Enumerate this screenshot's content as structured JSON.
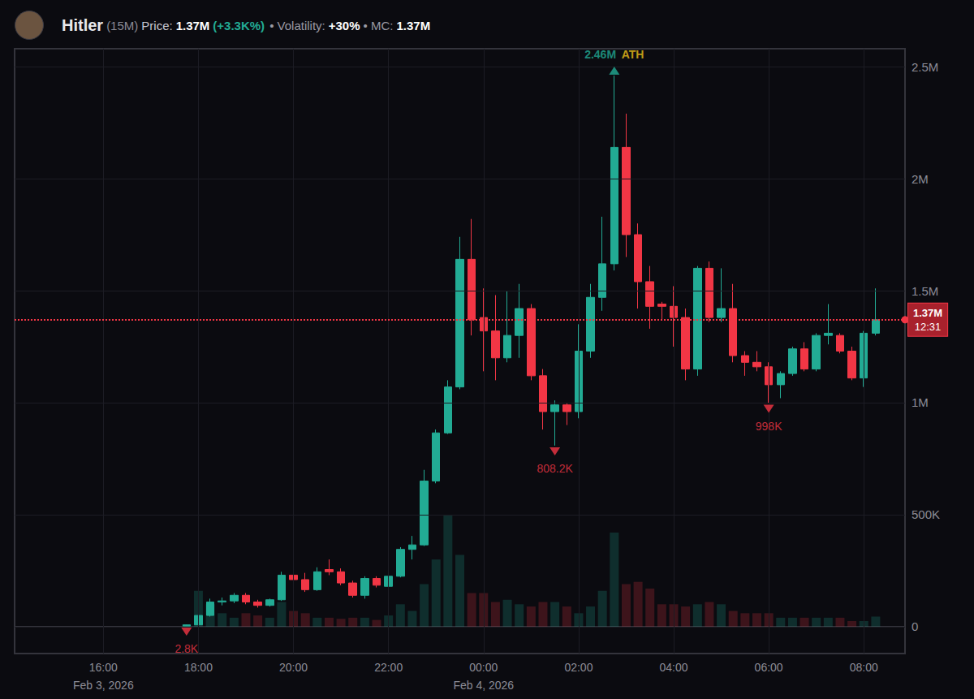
{
  "chart_data": {
    "type": "candlestick",
    "header": {
      "name": "Hitler",
      "interval": "(15M)",
      "price_label": "Price:",
      "price": "1.37M",
      "change": "(+3.3K%)",
      "volatility_label": "• Volatility:",
      "volatility": "+30%",
      "mc_label": "• MC:",
      "mc": "1.37M"
    },
    "x": [
      "2026-02-03T17:45",
      "2026-02-03T18:00",
      "2026-02-03T18:15",
      "2026-02-03T18:30",
      "2026-02-03T18:45",
      "2026-02-03T19:00",
      "2026-02-03T19:15",
      "2026-02-03T19:30",
      "2026-02-03T19:45",
      "2026-02-03T20:00",
      "2026-02-03T20:15",
      "2026-02-03T20:30",
      "2026-02-03T20:45",
      "2026-02-03T21:00",
      "2026-02-03T21:15",
      "2026-02-03T21:30",
      "2026-02-03T21:45",
      "2026-02-03T22:00",
      "2026-02-03T22:15",
      "2026-02-03T22:30",
      "2026-02-03T22:45",
      "2026-02-03T23:00",
      "2026-02-03T23:15",
      "2026-02-03T23:30",
      "2026-02-03T23:45",
      "2026-02-04T00:00",
      "2026-02-04T00:15",
      "2026-02-04T00:30",
      "2026-02-04T00:45",
      "2026-02-04T01:00",
      "2026-02-04T01:15",
      "2026-02-04T01:30",
      "2026-02-04T01:45",
      "2026-02-04T02:00",
      "2026-02-04T02:15",
      "2026-02-04T02:30",
      "2026-02-04T02:45",
      "2026-02-04T03:00",
      "2026-02-04T03:15",
      "2026-02-04T03:30",
      "2026-02-04T03:45",
      "2026-02-04T04:00",
      "2026-02-04T04:15",
      "2026-02-04T04:30",
      "2026-02-04T04:45",
      "2026-02-04T05:00",
      "2026-02-04T05:15",
      "2026-02-04T05:30",
      "2026-02-04T05:45",
      "2026-02-04T06:00",
      "2026-02-04T06:15",
      "2026-02-04T06:30",
      "2026-02-04T06:45",
      "2026-02-04T07:00",
      "2026-02-04T07:15",
      "2026-02-04T07:30",
      "2026-02-04T07:45",
      "2026-02-04T08:00",
      "2026-02-04T08:15"
    ],
    "open": [
      2800,
      8000,
      50000,
      110000,
      115000,
      140000,
      110000,
      95000,
      120000,
      230000,
      210000,
      165000,
      255000,
      245000,
      195000,
      140000,
      215000,
      180000,
      225000,
      345000,
      365000,
      650000,
      865000,
      1070000,
      1640000,
      1380000,
      1320000,
      1200000,
      1300000,
      1420000,
      1120000,
      960000,
      990000,
      960000,
      1230000,
      1470000,
      1620000,
      2140000,
      1750000,
      1540000,
      1440000,
      1430000,
      1380000,
      1150000,
      1600000,
      1380000,
      1420000,
      1210000,
      1180000,
      1160000,
      1080000,
      1130000,
      1240000,
      1150000,
      1300000,
      1300000,
      1230000,
      1110000,
      1310000
    ],
    "close": [
      8000,
      50000,
      110000,
      115000,
      140000,
      110000,
      95000,
      120000,
      230000,
      210000,
      165000,
      245000,
      245000,
      195000,
      140000,
      215000,
      185000,
      225000,
      345000,
      365000,
      650000,
      865000,
      1070000,
      1640000,
      1370000,
      1320000,
      1200000,
      1300000,
      1420000,
      1120000,
      960000,
      990000,
      960000,
      1230000,
      1470000,
      1620000,
      2140000,
      1750000,
      1540000,
      1430000,
      1430000,
      1380000,
      1150000,
      1600000,
      1380000,
      1420000,
      1210000,
      1180000,
      1160000,
      1080000,
      1130000,
      1240000,
      1150000,
      1300000,
      1310000,
      1230000,
      1110000,
      1310000,
      1370000
    ],
    "low": [
      2800,
      8000,
      45000,
      95000,
      105000,
      100000,
      85000,
      90000,
      115000,
      200000,
      155000,
      160000,
      230000,
      185000,
      130000,
      125000,
      175000,
      170000,
      220000,
      300000,
      360000,
      640000,
      860000,
      1060000,
      1300000,
      1140000,
      1100000,
      1180000,
      1200000,
      1100000,
      880000,
      808200,
      900000,
      930000,
      1200000,
      1410000,
      1590000,
      1650000,
      1420000,
      1330000,
      1370000,
      1250000,
      1100000,
      1120000,
      1360000,
      1360000,
      1180000,
      1120000,
      1140000,
      998000,
      1020000,
      1120000,
      1140000,
      1140000,
      1260000,
      1220000,
      1100000,
      1070000,
      1300000
    ],
    "high": [
      10000,
      60000,
      125000,
      130000,
      150000,
      150000,
      120000,
      125000,
      245000,
      260000,
      240000,
      265000,
      300000,
      260000,
      205000,
      225000,
      225000,
      235000,
      355000,
      405000,
      700000,
      880000,
      1100000,
      1740000,
      1820000,
      1510000,
      1480000,
      1500000,
      1530000,
      1440000,
      1150000,
      1010000,
      1000000,
      1350000,
      1530000,
      1830000,
      2460000,
      2290000,
      1800000,
      1610000,
      1450000,
      1520000,
      1420000,
      1610000,
      1630000,
      1600000,
      1530000,
      1230000,
      1230000,
      1180000,
      1140000,
      1250000,
      1270000,
      1310000,
      1440000,
      1310000,
      1250000,
      1320000,
      1510000
    ],
    "volume": [
      10000,
      160000,
      100000,
      60000,
      40000,
      60000,
      50000,
      40000,
      110000,
      70000,
      60000,
      40000,
      40000,
      35000,
      40000,
      40000,
      30000,
      50000,
      100000,
      70000,
      190000,
      300000,
      500000,
      320000,
      150000,
      150000,
      110000,
      120000,
      100000,
      90000,
      110000,
      110000,
      90000,
      60000,
      90000,
      160000,
      420000,
      190000,
      200000,
      170000,
      100000,
      100000,
      90000,
      100000,
      110000,
      100000,
      70000,
      60000,
      60000,
      60000,
      40000,
      40000,
      40000,
      40000,
      40000,
      40000,
      25000,
      25000,
      45000
    ],
    "color": {
      "up": "#22ab94",
      "down": "#f23645"
    },
    "xlim": [
      "2026-02-03T14:08",
      "2026-02-04T08:52"
    ],
    "xticks": [
      {
        "value": "2026-02-03T16:00",
        "label": "16:00\nFeb 3, 2026"
      },
      {
        "value": "2026-02-03T18:00",
        "label": "18:00"
      },
      {
        "value": "2026-02-03T20:00",
        "label": "20:00"
      },
      {
        "value": "2026-02-03T22:00",
        "label": "22:00"
      },
      {
        "value": "2026-02-04T00:00",
        "label": "00:00\nFeb 4, 2026"
      },
      {
        "value": "2026-02-04T02:00",
        "label": "02:00"
      },
      {
        "value": "2026-02-04T04:00",
        "label": "04:00"
      },
      {
        "value": "2026-02-04T06:00",
        "label": "06:00"
      },
      {
        "value": "2026-02-04T08:00",
        "label": "08:00"
      }
    ],
    "ylim": [
      -120000,
      2580000
    ],
    "yticks": [
      0,
      {
        "value": 500000,
        "label": "500K"
      },
      {
        "value": 1000000,
        "label": "1M"
      },
      {
        "value": 1500000,
        "label": "1.5M"
      },
      {
        "value": 2000000,
        "label": "2M"
      },
      {
        "value": 2500000,
        "label": "2.5M"
      }
    ],
    "grid": true,
    "annotations": [
      {
        "x": "2026-02-04T02:45",
        "y": 2460000,
        "label": "2.46M",
        "tag": "ATH",
        "marker": "triangle-up"
      },
      {
        "x": "2026-02-04T01:30",
        "y": 808200,
        "label": "808.2K",
        "marker": "triangle-down"
      },
      {
        "x": "2026-02-04T06:00",
        "y": 998000,
        "label": "998K",
        "marker": "triangle-down"
      },
      {
        "x": "2026-02-03T17:45",
        "y": 2800,
        "label": "2.8K",
        "marker": "triangle-down"
      }
    ],
    "price_line": {
      "y": 1370000,
      "label": "1.37M",
      "countdown": "12:31"
    }
  }
}
